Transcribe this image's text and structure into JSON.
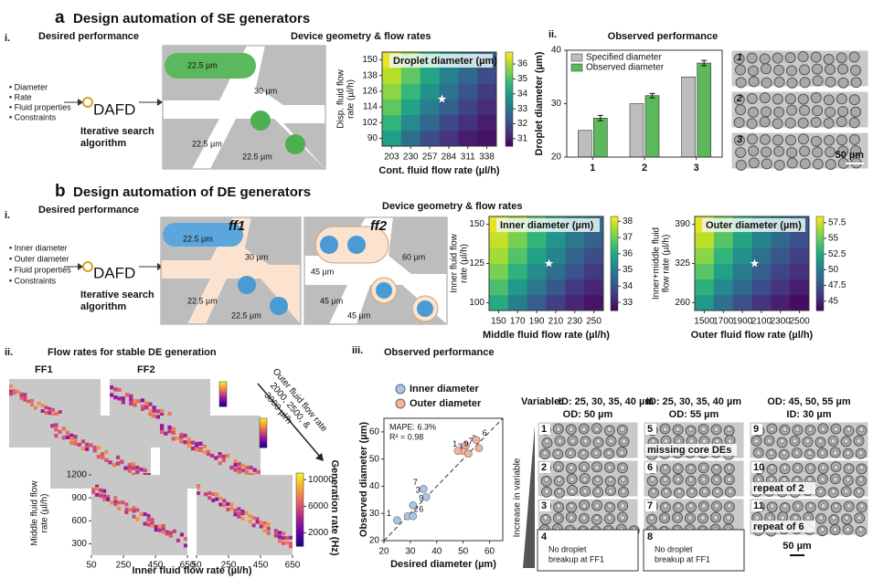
{
  "panel_a": {
    "letter": "a",
    "title": "Design automation of SE generators",
    "sub_i": "i.",
    "desired": "Desired performance",
    "bullets": [
      "• Diameter",
      "• Rate",
      "• Fluid properties",
      "• Constraints"
    ],
    "dafd": "DAFD",
    "algorithm": [
      "Iterative search",
      "algorithm"
    ],
    "geometry_title": "Device geometry & flow rates",
    "device_labels": [
      "22.5 µm",
      "30 µm",
      "22.5 µm",
      "22.5 µm"
    ],
    "sub_ii": "ii.",
    "observed": "Observed performance",
    "micrograph_labels": [
      "1",
      "2",
      "3"
    ],
    "scale": "50 µm"
  },
  "panel_b": {
    "letter": "b",
    "title": "Design automation of DE generators",
    "sub_i": "i.",
    "desired": "Desired performance",
    "bullets": [
      "• Inner diameter",
      "• Outer diameter",
      "• Fluid properties",
      "• Constraints"
    ],
    "dafd": "DAFD",
    "algorithm": [
      "Iterative search",
      "algorithm"
    ],
    "geometry_title": "Device geometry & flow rates",
    "ff": [
      "ff1",
      "ff2"
    ],
    "ff1_labels": [
      "22.5 µm",
      "30 µm",
      "22.5 µm",
      "22.5 µm"
    ],
    "ff2_labels": [
      "45 µm",
      "60 µm",
      "45 µm",
      "45 µm"
    ]
  },
  "panel_b_ii": {
    "label": "ii.",
    "title": "Flow rates for stable DE generation",
    "ff": [
      "FF1",
      "FF2"
    ],
    "arrow_text": [
      "Outer fluid flow rate",
      "2000, 2500, &",
      "3000 µl/h"
    ]
  },
  "panel_b_iii": {
    "label": "iii.",
    "title": "Observed performance",
    "variable": "Variable:",
    "column_headers": [
      [
        "ID: 25, 30, 35, 40 µm",
        "OD: 50 µm"
      ],
      [
        "ID: 25, 30, 35, 40 µm",
        "OD: 55 µm"
      ],
      [
        "OD: 45, 50, 55 µm",
        "ID: 30 µm"
      ]
    ],
    "increase": "Increase in variable",
    "tiles": [
      [
        {
          "num": "1"
        },
        {
          "num": "2"
        },
        {
          "num": "3"
        }
      ],
      [
        {
          "num": "5",
          "color": "#e53935",
          "caption": "missing core DEs"
        },
        {
          "num": "6"
        },
        {
          "num": "7"
        }
      ],
      [
        {
          "num": "9"
        },
        {
          "num": "10",
          "caption": "repeat of 2"
        },
        {
          "num": "11",
          "caption": "repeat of 6"
        }
      ]
    ],
    "fail_boxes": [
      {
        "num": "4",
        "text": [
          "No droplet",
          "breakup at FF1"
        ]
      },
      {
        "num": "8",
        "text": [
          "No droplet",
          "breakup at FF1"
        ]
      }
    ],
    "scale": "50 µm"
  },
  "chart_data": [
    {
      "type": "heatmap",
      "title": "Droplet diameter (µm)",
      "xlabel": "Cont. fluid flow rate (µl/h)",
      "ylabel": [
        "Disp. fluid flow",
        "rate (µl/h)"
      ],
      "x": [
        203,
        230,
        257,
        284,
        311,
        338
      ],
      "y": [
        90,
        102,
        114,
        126,
        138,
        150
      ],
      "xlim": [
        189.5,
        351.5
      ],
      "ylim": [
        84,
        156
      ],
      "xticks": [
        203,
        230,
        257,
        284,
        311,
        338
      ],
      "yticks": [
        90,
        102,
        114,
        126,
        138,
        150
      ],
      "values": [
        [
          34.0,
          32.8,
          32.0,
          31.5,
          31.0,
          30.8
        ],
        [
          34.6,
          33.5,
          32.6,
          31.9,
          31.4,
          31.0
        ],
        [
          35.2,
          34.1,
          33.2,
          32.4,
          31.8,
          31.3
        ],
        [
          35.7,
          34.7,
          33.7,
          32.9,
          32.2,
          31.6
        ],
        [
          36.1,
          35.2,
          34.2,
          33.3,
          32.6,
          32.0
        ],
        [
          36.6,
          35.7,
          34.7,
          33.8,
          33.0,
          32.3
        ]
      ],
      "colormap": "viridis",
      "clim": [
        30.5,
        36.8
      ],
      "cticks": [
        31,
        32,
        33,
        34,
        35,
        36
      ]
    },
    {
      "type": "bar",
      "ylabel": "Droplet diameter (µm)",
      "categories": [
        "1",
        "2",
        "3"
      ],
      "ylim": [
        20,
        40
      ],
      "yticks": [
        20,
        30,
        40
      ],
      "series": [
        {
          "name": "Specified diameter",
          "color": "#bdbdbd",
          "values": [
            25,
            30,
            35
          ]
        },
        {
          "name": "Observed diameter",
          "color": "#5cb85c",
          "values": [
            27.3,
            31.5,
            37.6
          ],
          "errors": [
            0.5,
            0.4,
            0.5
          ]
        }
      ]
    },
    {
      "type": "heatmap",
      "title": "Inner diameter (µm)",
      "xlabel": "Middle fluid flow rate (µl/h)",
      "ylabel": [
        "Inner fluid flow",
        "rate (µl/h)"
      ],
      "x": [
        150,
        170,
        190,
        210,
        230,
        250
      ],
      "y": [
        100,
        110,
        120,
        130,
        140,
        150
      ],
      "xlim": [
        140,
        260
      ],
      "ylim": [
        95,
        155
      ],
      "xticks": [
        150,
        170,
        190,
        210,
        230,
        250
      ],
      "yticks": [
        100,
        125,
        150
      ],
      "values": [
        [
          36.0,
          35.0,
          34.2,
          33.6,
          33.1,
          32.8
        ],
        [
          36.6,
          35.6,
          34.8,
          34.1,
          33.5,
          33.1
        ],
        [
          37.1,
          36.2,
          35.3,
          34.6,
          34.0,
          33.5
        ],
        [
          37.5,
          36.7,
          35.8,
          35.1,
          34.4,
          33.9
        ],
        [
          37.8,
          37.1,
          36.3,
          35.5,
          34.8,
          34.3
        ],
        [
          38.1,
          37.5,
          36.7,
          35.9,
          35.2,
          34.6
        ]
      ],
      "colormap": "viridis",
      "clim": [
        32.5,
        38.3
      ],
      "cticks": [
        33,
        34,
        35,
        36,
        37,
        38
      ]
    },
    {
      "type": "heatmap",
      "title": "Outer diameter (µm)",
      "xlabel": "Outer fluid flow rate (µl/h)",
      "ylabel": [
        "Inner+middle fluid",
        "flow rate (µl/h)"
      ],
      "x": [
        1500,
        1700,
        1900,
        2100,
        2300,
        2500
      ],
      "y": [
        260,
        286,
        312,
        338,
        364,
        390
      ],
      "xlim": [
        1400,
        2600
      ],
      "ylim": [
        247,
        403
      ],
      "xticks": [
        1500,
        1700,
        1900,
        2100,
        2300,
        2500
      ],
      "yticks": [
        260,
        325,
        390
      ],
      "values": [
        [
          51.5,
          49.0,
          47.2,
          45.8,
          44.8,
          44.0
        ],
        [
          53.0,
          50.5,
          48.5,
          47.0,
          45.8,
          44.8
        ],
        [
          54.5,
          52.0,
          49.8,
          48.0,
          46.7,
          45.6
        ],
        [
          55.8,
          53.3,
          51.0,
          49.1,
          47.6,
          46.4
        ],
        [
          57.0,
          54.5,
          52.2,
          50.2,
          48.5,
          47.2
        ],
        [
          58.0,
          55.6,
          53.3,
          51.2,
          49.4,
          48.0
        ]
      ],
      "colormap": "viridis",
      "clim": [
        43.5,
        58.5
      ],
      "cticks": [
        45,
        47.5,
        50,
        52.5,
        55,
        57.5
      ]
    },
    {
      "type": "scatter",
      "xlabel": "Desired diameter (µm)",
      "ylabel": "Observed diameter (µm)",
      "xlim": [
        20,
        65
      ],
      "ylim": [
        20,
        65
      ],
      "xticks": [
        20,
        30,
        40,
        50,
        60
      ],
      "yticks": [
        20,
        30,
        40,
        50,
        60
      ],
      "annotations": [
        "MAPE: 6.3%",
        "R² = 0.98"
      ],
      "series": [
        {
          "name": "Inner diameter",
          "color": "#a9c4e8",
          "x": [
            25,
            29,
            36,
            31,
            35,
            31
          ],
          "values": [
            27.5,
            29,
            36,
            29,
            39,
            33
          ],
          "point_labels": [
            "1",
            "2",
            "3",
            "6",
            "7",
            "9"
          ]
        },
        {
          "name": "Outer diameter",
          "color": "#f4b39a",
          "x": [
            50,
            51,
            52,
            55,
            56,
            48
          ],
          "values": [
            53,
            55,
            52,
            57,
            54,
            53
          ],
          "point_labels": [
            "1",
            "2",
            "3",
            "6",
            "7",
            "9"
          ]
        }
      ]
    },
    {
      "type": "generation",
      "xlabel": "Inner fluid flow rate (µl/h)",
      "ylabel": [
        "Middle fluid flow",
        "rate (µl/h)"
      ],
      "xlim": [
        50,
        650
      ],
      "ylim": [
        150,
        1200
      ],
      "xticks": [
        50,
        250,
        450,
        650
      ],
      "yticks": [
        300,
        600,
        900,
        1200
      ],
      "colorbar": {
        "label": "Generation rate (Hz)",
        "ticks": [
          2000,
          6000,
          10000
        ],
        "lim": [
          0,
          11000
        ],
        "colormap": "plasma"
      }
    }
  ]
}
